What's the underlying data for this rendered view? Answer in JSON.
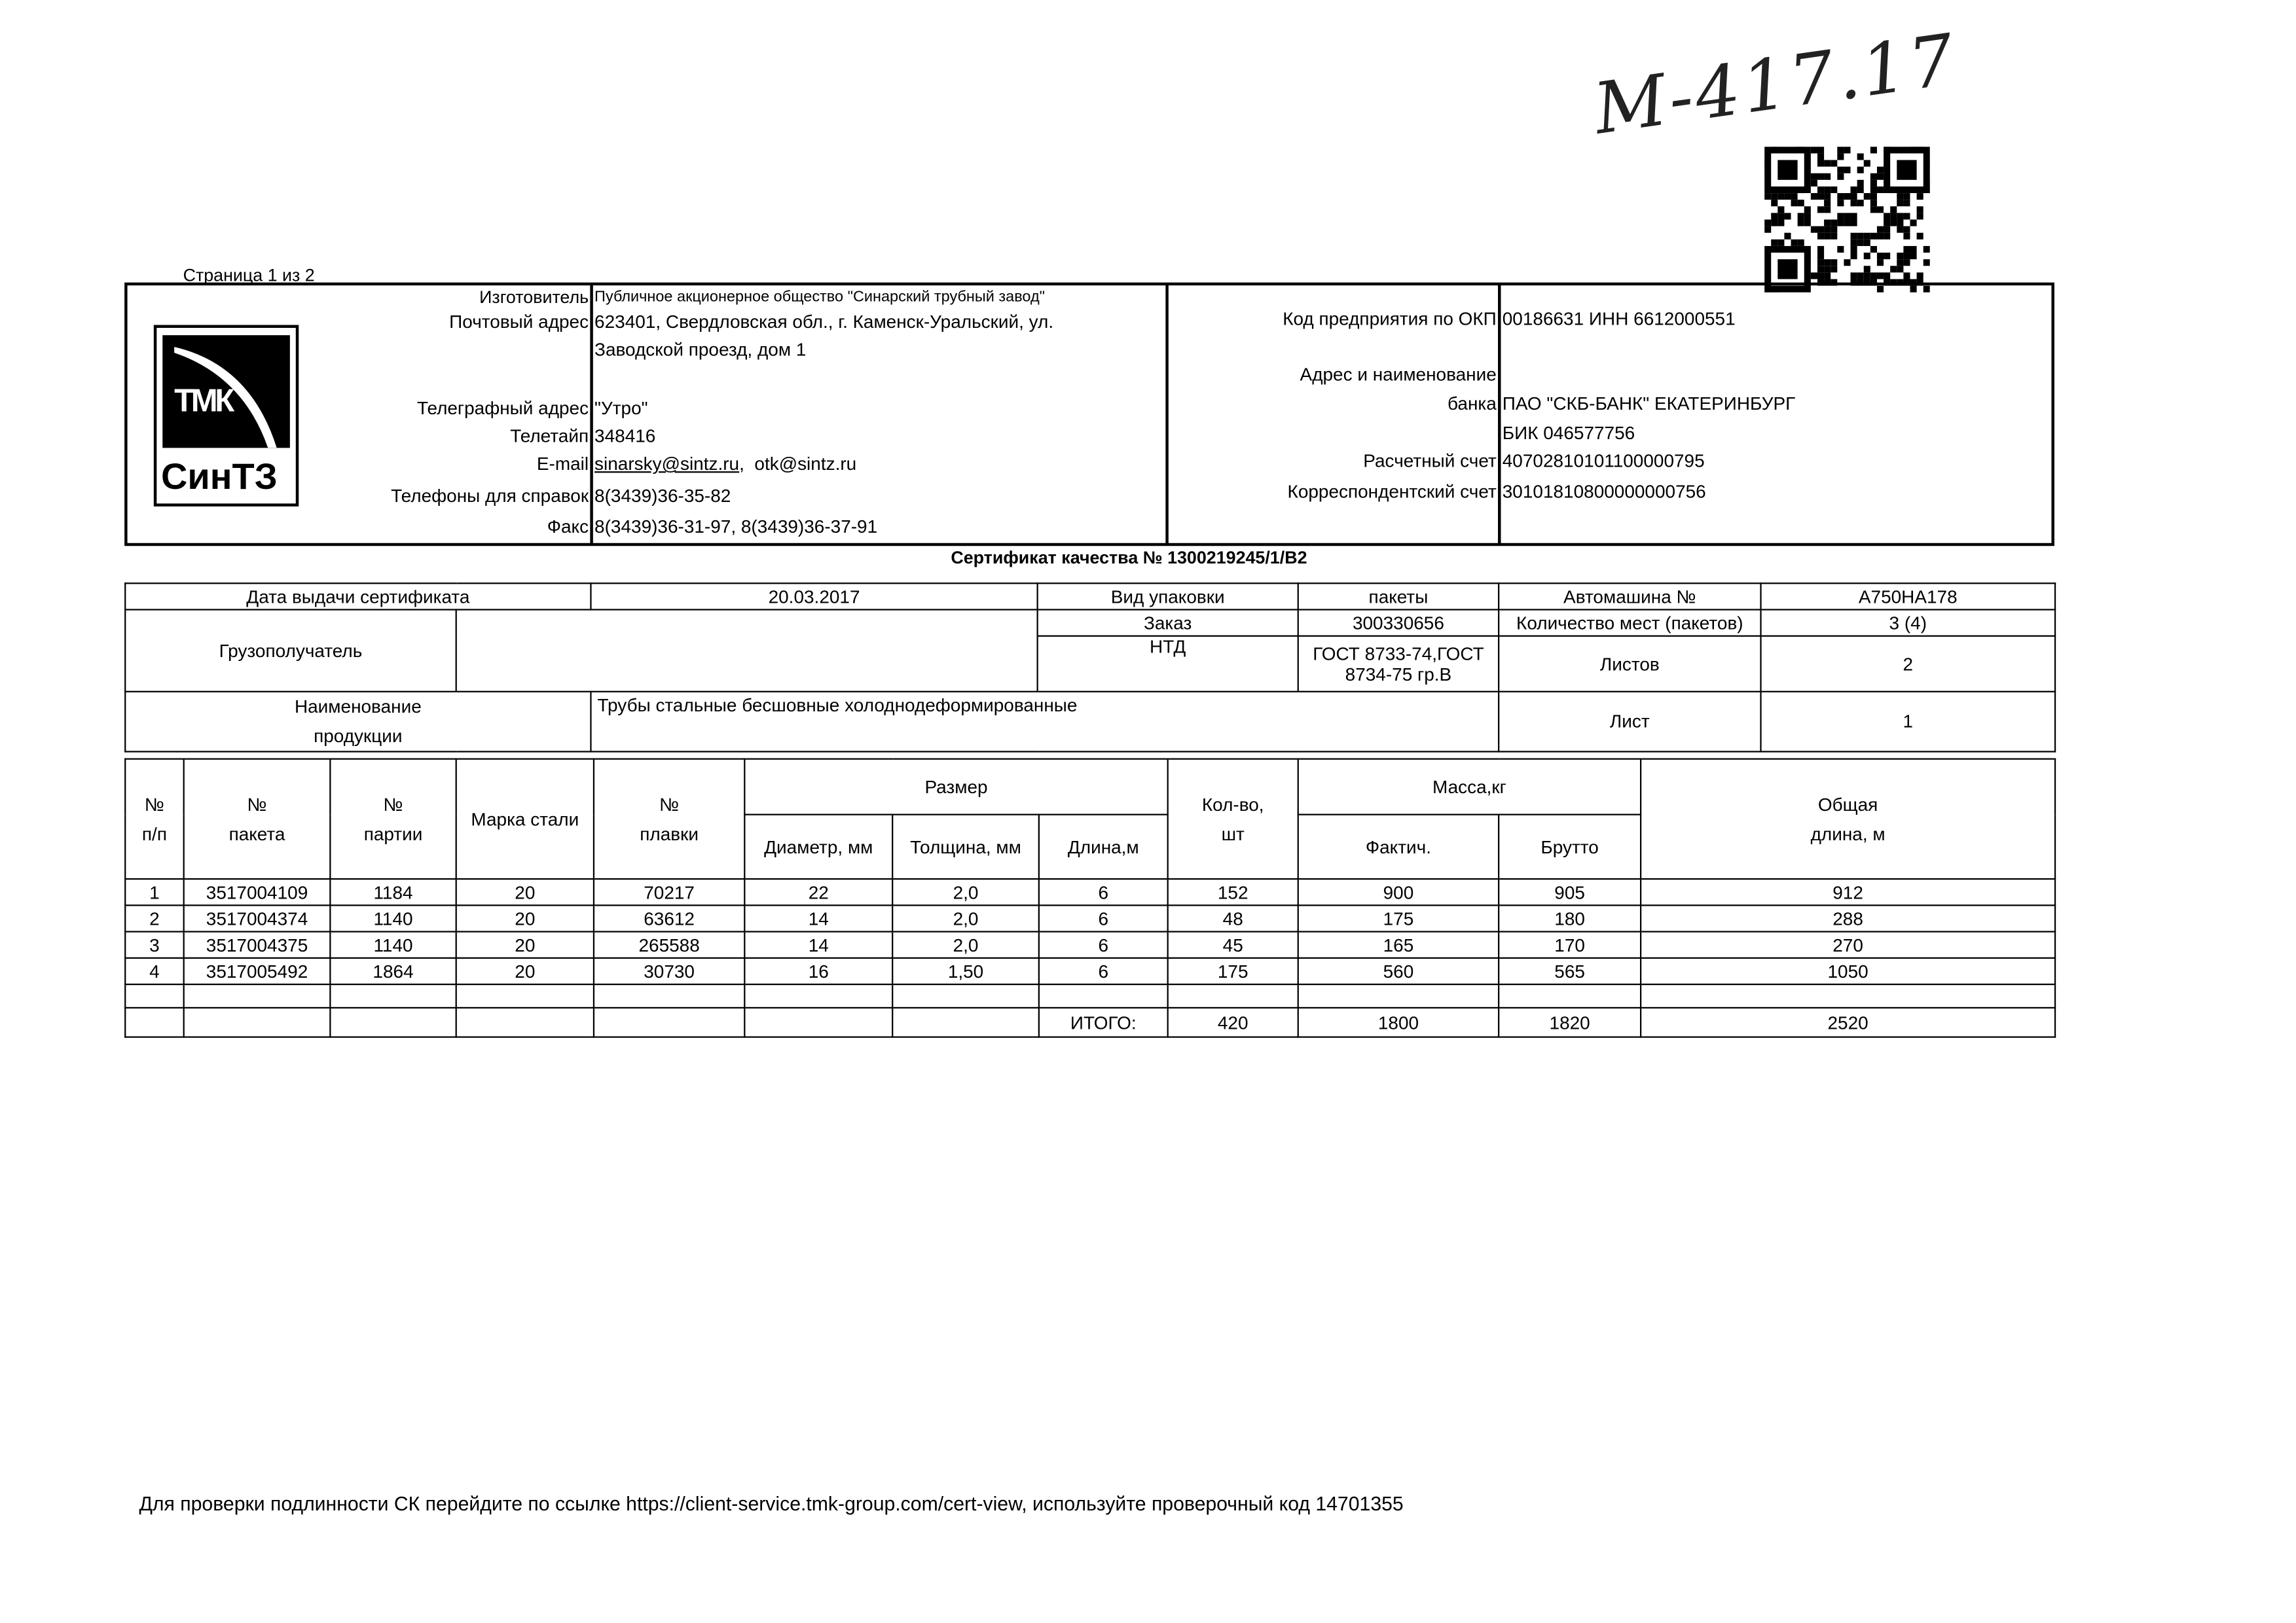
{
  "page_indicator": "Страница 1 из 2",
  "handwritten_note": "М-417.17",
  "logo": {
    "top": "ТМК",
    "bottom": "СинТЗ"
  },
  "manufacturer": {
    "labels": {
      "maker": "Изготовитель",
      "postal": "Почтовый адрес",
      "telegraph": "Телеграфный адрес",
      "teletype": "Телетайп",
      "email": "E-mail",
      "phones": "Телефоны для справок",
      "fax": "Факс"
    },
    "maker": "Публичное акционерное общество \"Синарский трубный завод\"",
    "postal_line1": "623401, Свердловская обл., г. Каменск-Уральский, ул.",
    "postal_line2": "Заводской проезд, дом 1",
    "telegraph": "\"Утро\"",
    "teletype": "348416",
    "email1": "sinarsky@sintz.ru",
    "email2": "otk@sintz.ru",
    "phones": "8(3439)36-35-82",
    "fax": "8(3439)36-31-97, 8(3439)36-37-91"
  },
  "bank": {
    "labels": {
      "okp": "Код предприятия по ОКП",
      "bank1": "Адрес и наименование",
      "bank2": "банка",
      "account": "Расчетный счет",
      "corr": "Корреспондентский счет"
    },
    "okp": "00186631 ИНН 6612000551",
    "bank_name": "ПАО \"СКБ-БАНК\" ЕКАТЕРИНБУРГ",
    "bik": "БИК 046577756",
    "account": "40702810101100000795",
    "corr": "30101810800000000756"
  },
  "certificate_title": "Сертификат качества № 1300219245/1/B2",
  "info": {
    "date_label": "Дата выдачи сертификата",
    "date": "20.03.2017",
    "packaging_label": "Вид упаковки",
    "packaging": "пакеты",
    "truck_label": "Автомашина №",
    "truck": "А750НА178",
    "order_label": "Заказ",
    "order": "300330656",
    "places_label": "Количество мест (пакетов)",
    "places": "3 (4)",
    "consignee_label": "Грузополучатель",
    "consignee": "",
    "ntd_label": "НТД",
    "ntd1": "ГОСТ 8733-74,ГОСТ",
    "ntd2": "8734-75 гр.В",
    "sheets_label": "Листов",
    "sheets": "2",
    "product_label1": "Наименование",
    "product_label2": "продукции",
    "product": "Трубы стальные бесшовные холоднодеформированные",
    "sheet_label": "Лист",
    "sheet": "1"
  },
  "table": {
    "headers": {
      "num1": "№",
      "num2": "п/п",
      "pkg1": "№",
      "pkg2": "пакета",
      "batch1": "№",
      "batch2": "партии",
      "steel": "Марка стали",
      "heat1": "№",
      "heat2": "плавки",
      "size": "Размер",
      "diameter": "Диаметр, мм",
      "thickness": "Толщина, мм",
      "length": "Длина,м",
      "qty1": "Кол-во,",
      "qty2": "шт",
      "mass": "Масса,кг",
      "actual": "Фактич.",
      "gross": "Брутто",
      "total1": "Общая",
      "total2": "длина, м"
    },
    "rows": [
      [
        "1",
        "3517004109",
        "1184",
        "20",
        "70217",
        "22",
        "2,0",
        "6",
        "152",
        "900",
        "905",
        "912"
      ],
      [
        "2",
        "3517004374",
        "1140",
        "20",
        "63612",
        "14",
        "2,0",
        "6",
        "48",
        "175",
        "180",
        "288"
      ],
      [
        "3",
        "3517004375",
        "1140",
        "20",
        "265588",
        "14",
        "2,0",
        "6",
        "45",
        "165",
        "170",
        "270"
      ],
      [
        "4",
        "3517005492",
        "1864",
        "20",
        "30730",
        "16",
        "1,50",
        "6",
        "175",
        "560",
        "565",
        "1050"
      ]
    ],
    "totals": {
      "label": "ИТОГО:",
      "qty": "420",
      "actual": "1800",
      "gross": "1820",
      "length": "2520"
    }
  },
  "footer": "Для проверки подлинности СК перейдите по ссылке https://client-service.tmk-group.com/cert-view, используйте проверочный код 14701355"
}
